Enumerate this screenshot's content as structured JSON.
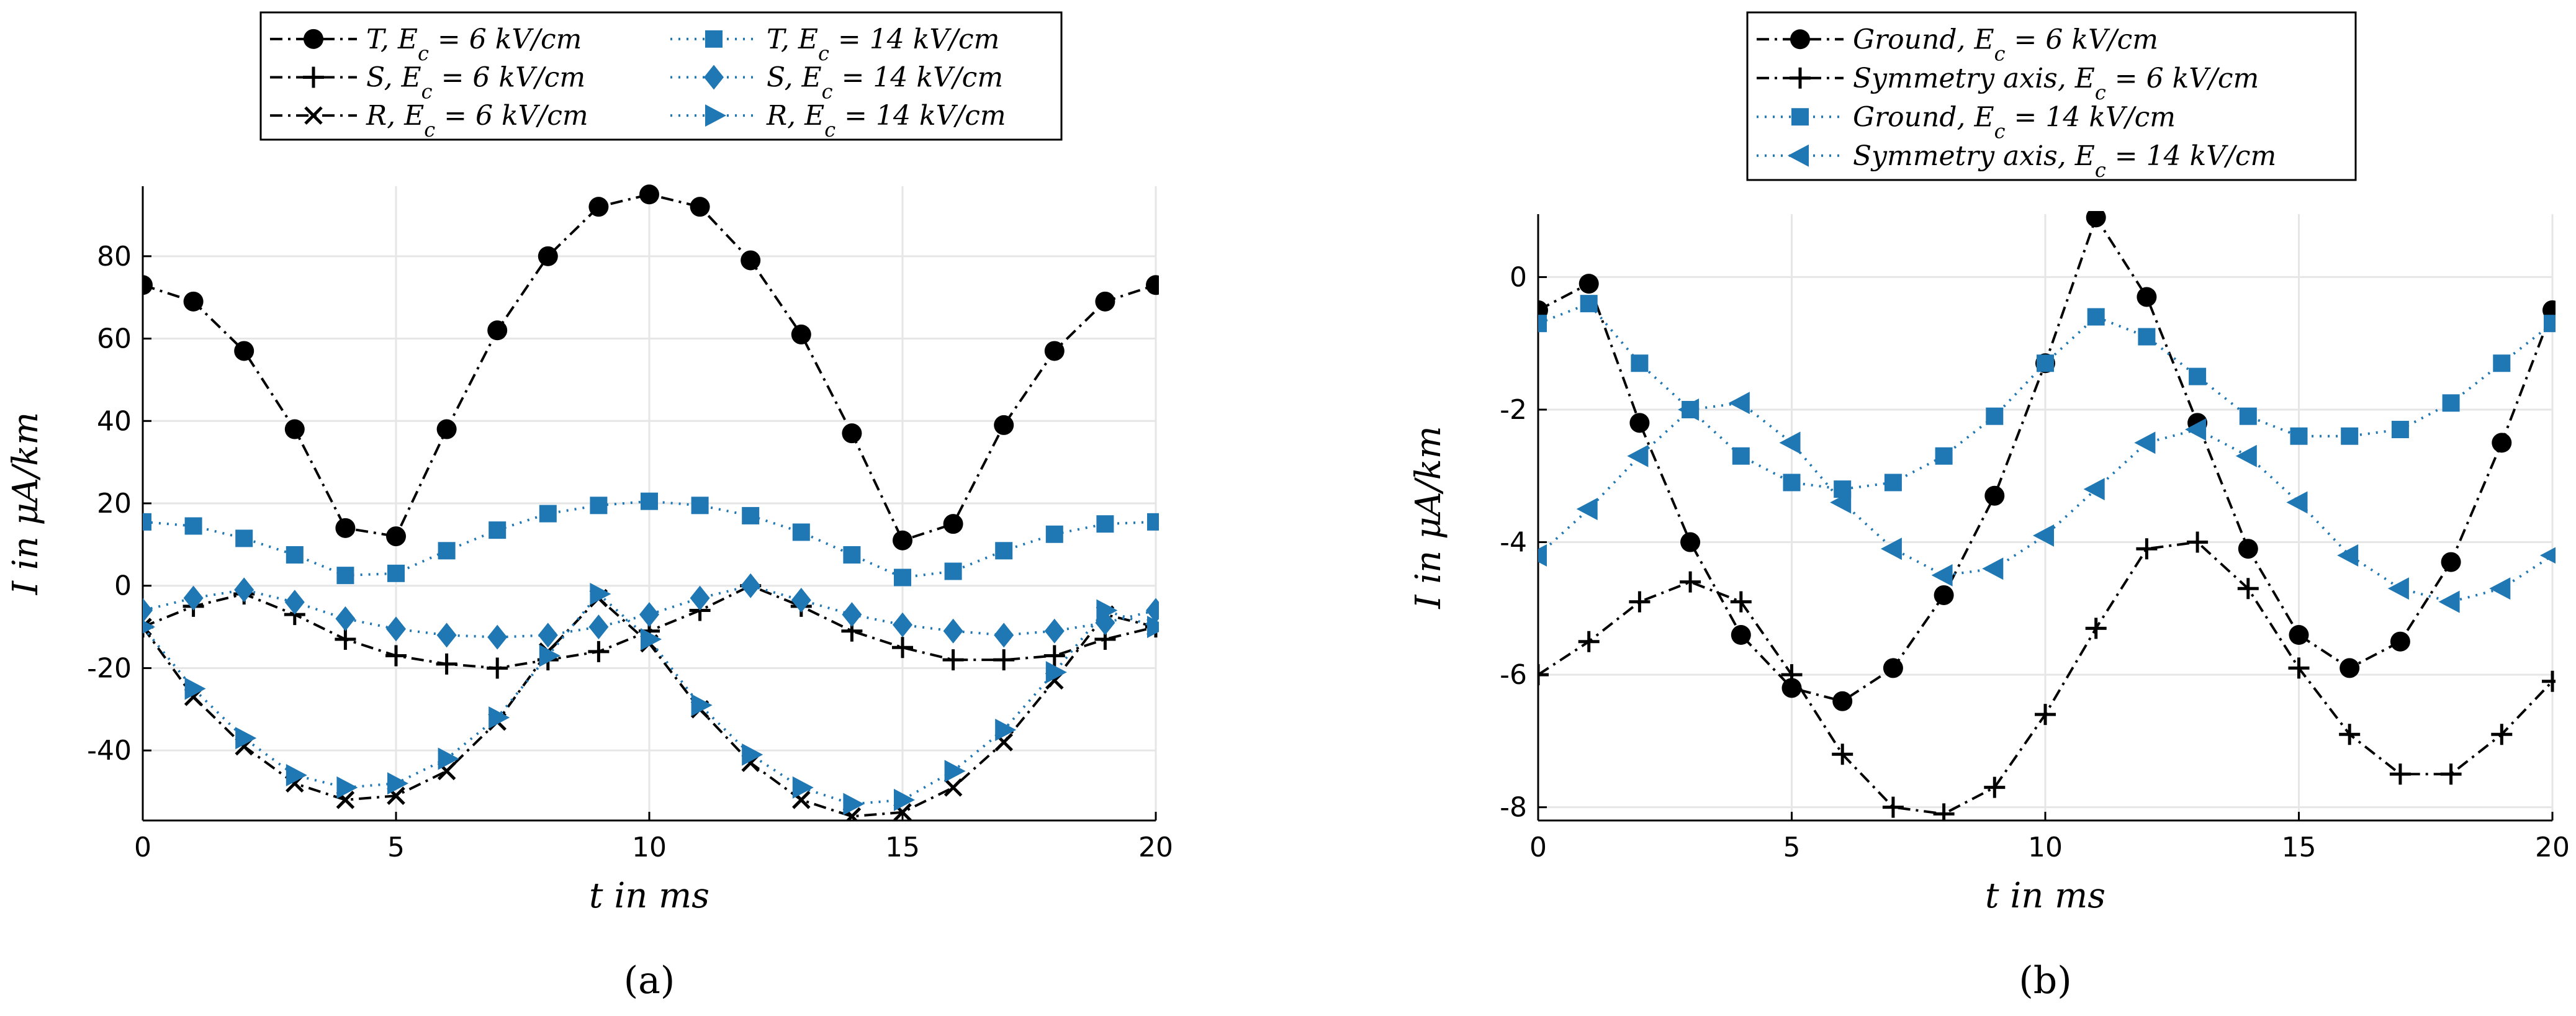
{
  "colors": {
    "black": "#000000",
    "blue": "#1f77b4",
    "grid": "#e6e6e6"
  },
  "chart_data": [
    {
      "type": "line",
      "panel_label": "(a)",
      "xlabel": "t in ms",
      "ylabel": "I in μA/km",
      "xlim": [
        0,
        20
      ],
      "ylim": [
        -57,
        97
      ],
      "xticks": [
        0,
        5,
        10,
        15,
        20
      ],
      "yticks": [
        -40,
        -20,
        0,
        20,
        40,
        60,
        80
      ],
      "ytick_labels": [
        "-40",
        "-20",
        "0",
        "20",
        "40",
        "60",
        "80"
      ],
      "xtick_labels": [
        "0",
        "5",
        "10",
        "15",
        "20"
      ],
      "grid": true,
      "legend": {
        "placement": "top",
        "columns": 2
      },
      "x": [
        0,
        1,
        2,
        3,
        4,
        5,
        6,
        7,
        8,
        9,
        10,
        11,
        12,
        13,
        14,
        15,
        16,
        17,
        18,
        19,
        20
      ],
      "series": [
        {
          "name": "T, Ec = 6 kV/cm",
          "color": "#000000",
          "marker": "circle",
          "dash": "dashdot",
          "values": [
            73,
            69,
            57,
            38,
            14,
            12,
            38,
            62,
            80,
            92,
            95,
            92,
            79,
            61,
            37,
            11,
            15,
            39,
            57,
            69,
            73
          ]
        },
        {
          "name": "S, Ec = 6 kV/cm",
          "color": "#000000",
          "marker": "plus",
          "dash": "dashdot",
          "values": [
            -10,
            -5,
            -2,
            -7,
            -13,
            -17,
            -19,
            -20,
            -18,
            -16,
            -11,
            -6,
            0,
            -5,
            -11,
            -15,
            -18,
            -18,
            -17,
            -13,
            -10
          ]
        },
        {
          "name": "R, Ec = 6 kV/cm",
          "color": "#000000",
          "marker": "x",
          "dash": "dashdot",
          "values": [
            -10,
            -27,
            -39,
            -48,
            -52,
            -51,
            -45,
            -33,
            -16,
            -3,
            -14,
            -30,
            -43,
            -52,
            -56,
            -55,
            -49,
            -38,
            -23,
            -7,
            -10
          ]
        },
        {
          "name": "T, Ec = 14 kV/cm",
          "color": "#1f77b4",
          "marker": "square",
          "dash": "dotted",
          "values": [
            15.5,
            14.5,
            11.5,
            7.5,
            2.5,
            3,
            8.5,
            13.5,
            17.5,
            19.5,
            20.5,
            19.5,
            17,
            13,
            7.5,
            2,
            3.5,
            8.5,
            12.5,
            15,
            15.5
          ]
        },
        {
          "name": "S, Ec = 14 kV/cm",
          "color": "#1f77b4",
          "marker": "diamond",
          "dash": "dotted",
          "values": [
            -6,
            -3,
            -1,
            -4,
            -8,
            -10.5,
            -12,
            -12.5,
            -12,
            -10,
            -7,
            -3,
            0,
            -3.5,
            -7,
            -9.5,
            -11,
            -12,
            -11,
            -9,
            -6
          ]
        },
        {
          "name": "R, Ec = 14 kV/cm",
          "color": "#1f77b4",
          "marker": "triangle-right",
          "dash": "dotted",
          "values": [
            -10,
            -25,
            -37,
            -46,
            -49,
            -48,
            -42,
            -32,
            -17,
            -2,
            -13,
            -29,
            -41,
            -49,
            -53,
            -52,
            -45,
            -35,
            -21,
            -6,
            -10
          ]
        }
      ]
    },
    {
      "type": "line",
      "panel_label": "(b)",
      "xlabel": "t in ms",
      "ylabel": "I in μA/km",
      "xlim": [
        0,
        20
      ],
      "ylim": [
        -8.2,
        0.95
      ],
      "xticks": [
        0,
        5,
        10,
        15,
        20
      ],
      "yticks": [
        -8,
        -6,
        -4,
        -2,
        0
      ],
      "ytick_labels": [
        "-8",
        "-6",
        "-4",
        "-2",
        "0"
      ],
      "xtick_labels": [
        "0",
        "5",
        "10",
        "15",
        "20"
      ],
      "grid": true,
      "legend": {
        "placement": "top",
        "columns": 1
      },
      "x": [
        0,
        1,
        2,
        3,
        4,
        5,
        6,
        7,
        8,
        9,
        10,
        11,
        12,
        13,
        14,
        15,
        16,
        17,
        18,
        19,
        20
      ],
      "series": [
        {
          "name": "Ground, Ec = 6 kV/cm",
          "color": "#000000",
          "marker": "circle",
          "dash": "dashdot",
          "values": [
            -0.5,
            -0.1,
            -2.2,
            -4.0,
            -5.4,
            -6.2,
            -6.4,
            -5.9,
            -4.8,
            -3.3,
            -1.3,
            0.9,
            -0.3,
            -2.2,
            -4.1,
            -5.4,
            -5.9,
            -5.5,
            -4.3,
            -2.5,
            -0.5
          ]
        },
        {
          "name": "Symmetry axis, Ec = 6 kV/cm",
          "color": "#000000",
          "marker": "plus",
          "dash": "dashdot",
          "values": [
            -6.0,
            -5.5,
            -4.9,
            -4.6,
            -4.9,
            -6.0,
            -7.2,
            -8.0,
            -8.1,
            -7.7,
            -6.6,
            -5.3,
            -4.1,
            -4.0,
            -4.7,
            -5.9,
            -6.9,
            -7.5,
            -7.5,
            -6.9,
            -6.1
          ]
        },
        {
          "name": "Ground, Ec = 14 kV/cm",
          "color": "#1f77b4",
          "marker": "square",
          "dash": "dotted",
          "values": [
            -0.7,
            -0.4,
            -1.3,
            -2.0,
            -2.7,
            -3.1,
            -3.2,
            -3.1,
            -2.7,
            -2.1,
            -1.3,
            -0.6,
            -0.9,
            -1.5,
            -2.1,
            -2.4,
            -2.4,
            -2.3,
            -1.9,
            -1.3,
            -0.7
          ]
        },
        {
          "name": "Symmetry axis, Ec = 14 kV/cm",
          "color": "#1f77b4",
          "marker": "triangle-left",
          "dash": "dotted",
          "values": [
            -4.2,
            -3.5,
            -2.7,
            -2.0,
            -1.9,
            -2.5,
            -3.4,
            -4.1,
            -4.5,
            -4.4,
            -3.9,
            -3.2,
            -2.5,
            -2.3,
            -2.7,
            -3.4,
            -4.2,
            -4.7,
            -4.9,
            -4.7,
            -4.2
          ]
        }
      ]
    }
  ]
}
